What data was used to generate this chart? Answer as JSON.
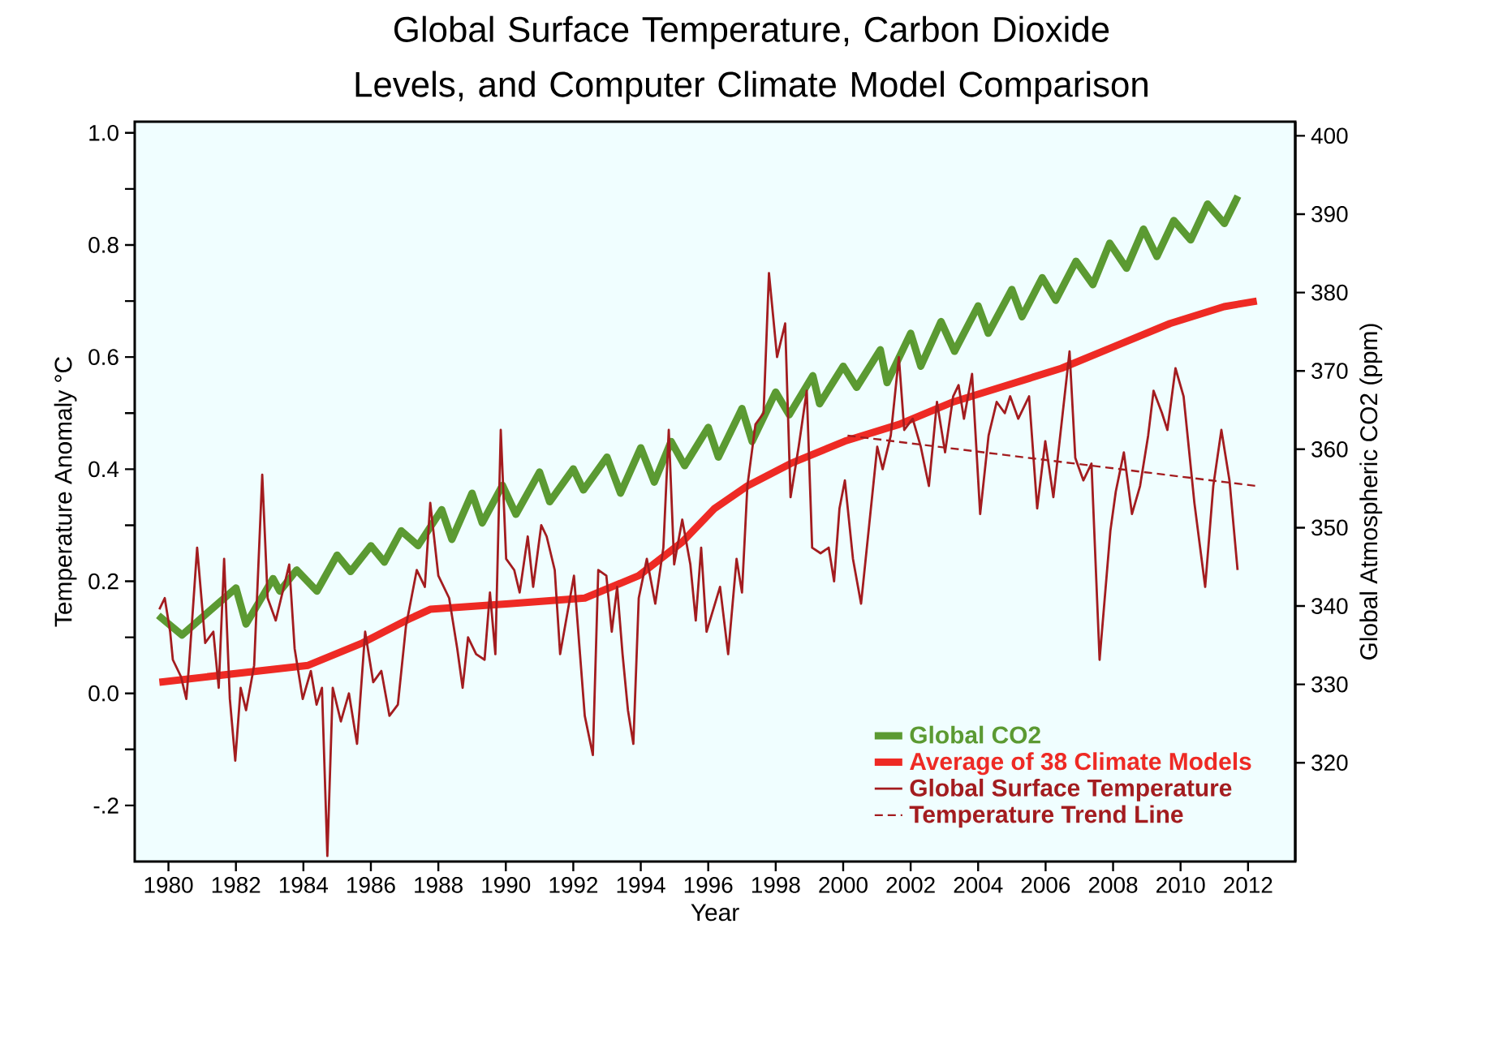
{
  "chart_data": {
    "type": "line",
    "title": "Global Surface Temperature, Carbon Dioxide Levels, and Computer Climate Model Comparison",
    "xlabel": "Year",
    "ylabel": "Temperature Anomaly °C",
    "y2label": "Global Atmospheric CO2 (ppm)",
    "xlim": [
      1979.0,
      2013.4
    ],
    "ylim": [
      -0.3,
      1.02
    ],
    "y2lim": [
      307.4,
      401.8
    ],
    "xticks": [
      1980,
      1982,
      1984,
      1986,
      1988,
      1990,
      1992,
      1994,
      1996,
      1998,
      2000,
      2002,
      2004,
      2006,
      2008,
      2010,
      2012
    ],
    "yticks": [
      {
        "value": -0.2,
        "label": "-.2"
      },
      {
        "value": -0.1,
        "label": null
      },
      {
        "value": 0,
        "label": "0.0"
      },
      {
        "value": 0.1,
        "label": null
      },
      {
        "value": 0.2,
        "label": "0.2"
      },
      {
        "value": 0.3,
        "label": null
      },
      {
        "value": 0.4,
        "label": "0.4"
      },
      {
        "value": 0.5,
        "label": null
      },
      {
        "value": 0.6,
        "label": "0.6"
      },
      {
        "value": 0.7,
        "label": null
      },
      {
        "value": 0.8,
        "label": "0.8"
      },
      {
        "value": 0.9,
        "label": null
      },
      {
        "value": 1.0,
        "label": "1.0"
      }
    ],
    "y2ticks": [
      320,
      330,
      340,
      350,
      360,
      370,
      380,
      390,
      400
    ],
    "legend": "bottom right",
    "marker": "none",
    "series": [
      {
        "name": "Global CO2",
        "color": "#5b9a32",
        "axis": "y2",
        "line_style": "solid",
        "x": [
          1979.7,
          1980.4,
          1982.0,
          1982.3,
          1983.1,
          1983.3,
          1983.8,
          1984.4,
          1985.0,
          1985.4,
          1986.0,
          1986.4,
          1986.9,
          1987.4,
          1988.1,
          1988.4,
          1989.0,
          1989.3,
          1989.9,
          1990.3,
          1991.0,
          1991.3,
          1992.0,
          1992.3,
          1993.0,
          1993.4,
          1994.0,
          1994.4,
          1994.9,
          1995.3,
          1996.0,
          1996.3,
          1997.0,
          1997.3,
          1998.0,
          1998.4,
          1999.1,
          1999.3,
          2000.0,
          2000.4,
          2001.1,
          2001.3,
          2002.0,
          2002.3,
          2002.9,
          2003.3,
          2004.0,
          2004.3,
          2005.0,
          2005.3,
          2005.9,
          2006.3,
          2006.9,
          2007.4,
          2007.9,
          2008.4,
          2008.9,
          2009.3,
          2009.8,
          2010.3,
          2010.8,
          2011.3,
          2011.7
        ],
        "values": [
          338.8,
          336.3,
          342.3,
          337.7,
          343.5,
          341.9,
          344.6,
          341.9,
          346.5,
          344.4,
          347.7,
          345.6,
          349.6,
          347.7,
          352.3,
          348.5,
          354.4,
          350.6,
          355.4,
          351.7,
          357.1,
          353.3,
          357.5,
          354.8,
          359.0,
          354.4,
          360.2,
          355.8,
          361.0,
          357.9,
          362.8,
          359.0,
          365.2,
          361.0,
          367.3,
          364.4,
          369.4,
          365.8,
          370.6,
          367.9,
          372.7,
          368.5,
          374.8,
          370.6,
          376.3,
          372.5,
          378.3,
          374.8,
          380.4,
          376.9,
          381.9,
          379.0,
          384.0,
          381.0,
          386.3,
          383.1,
          388.1,
          384.6,
          389.2,
          386.7,
          391.3,
          388.8,
          392.3
        ]
      },
      {
        "name": "Average of 38 Climate Models",
        "color": "#ee2a24",
        "line_style": "solid",
        "x": [
          1979.73,
          1984.14,
          1985.75,
          1987.04,
          1987.76,
          1990.09,
          1992.34,
          1993.94,
          1995.23,
          1996.19,
          1997.16,
          1998.44,
          2000.05,
          2001.66,
          2003.26,
          2004.87,
          2006.47,
          2008.08,
          2009.69,
          2011.29,
          2012.26
        ],
        "values": [
          0.02,
          0.05,
          0.09,
          0.13,
          0.15,
          0.16,
          0.17,
          0.21,
          0.27,
          0.33,
          0.37,
          0.41,
          0.45,
          0.48,
          0.52,
          0.55,
          0.58,
          0.62,
          0.66,
          0.69,
          0.7
        ]
      },
      {
        "name": "Global Surface Temperature",
        "color": "#a31c1f",
        "line_style": "solid",
        "x": [
          1979.73,
          1979.89,
          1980.05,
          1980.13,
          1980.37,
          1980.53,
          1980.61,
          1980.85,
          1981.09,
          1981.33,
          1981.49,
          1981.65,
          1981.82,
          1981.98,
          1982.14,
          1982.3,
          1982.54,
          1982.78,
          1982.94,
          1983.18,
          1983.42,
          1983.58,
          1983.74,
          1983.98,
          1984.22,
          1984.39,
          1984.55,
          1984.71,
          1984.87,
          1985.11,
          1985.35,
          1985.59,
          1985.83,
          1986.07,
          1986.31,
          1986.55,
          1986.8,
          1987.04,
          1987.36,
          1987.6,
          1987.76,
          1988.0,
          1988.32,
          1988.56,
          1988.72,
          1988.88,
          1989.12,
          1989.37,
          1989.53,
          1989.69,
          1989.85,
          1990.01,
          1990.25,
          1990.41,
          1990.65,
          1990.81,
          1991.05,
          1991.21,
          1991.45,
          1991.61,
          1992.02,
          1992.34,
          1992.58,
          1992.74,
          1992.98,
          1993.14,
          1993.3,
          1993.46,
          1993.62,
          1993.78,
          1993.94,
          1994.18,
          1994.43,
          1994.67,
          1994.83,
          1994.99,
          1995.23,
          1995.47,
          1995.63,
          1995.79,
          1995.95,
          1996.35,
          1996.59,
          1996.84,
          1997.0,
          1997.16,
          1997.4,
          1997.64,
          1997.8,
          1998.04,
          1998.28,
          1998.44,
          1998.68,
          1998.92,
          1999.08,
          1999.33,
          1999.57,
          1999.73,
          1999.89,
          2000.05,
          2000.29,
          2000.53,
          2000.77,
          2001.01,
          2001.17,
          2001.41,
          2001.65,
          2001.81,
          2002.06,
          2002.3,
          2002.54,
          2002.78,
          2003.02,
          2003.26,
          2003.42,
          2003.58,
          2003.82,
          2004.06,
          2004.31,
          2004.55,
          2004.79,
          2004.95,
          2005.19,
          2005.51,
          2005.75,
          2005.99,
          2006.23,
          2006.47,
          2006.71,
          2006.88,
          2007.12,
          2007.36,
          2007.6,
          2007.92,
          2008.08,
          2008.32,
          2008.56,
          2008.8,
          2009.04,
          2009.2,
          2009.45,
          2009.61,
          2009.85,
          2010.09,
          2010.41,
          2010.73,
          2010.97,
          2011.21,
          2011.45,
          2011.69
        ],
        "values": [
          0.15,
          0.17,
          0.11,
          0.06,
          0.03,
          -0.01,
          0.05,
          0.26,
          0.09,
          0.11,
          0.01,
          0.24,
          -0.01,
          -0.12,
          0.01,
          -0.03,
          0.05,
          0.39,
          0.17,
          0.13,
          0.19,
          0.23,
          0.08,
          -0.01,
          0.04,
          -0.02,
          0.01,
          -0.29,
          0.01,
          -0.05,
          0.0,
          -0.09,
          0.11,
          0.02,
          0.04,
          -0.04,
          -0.02,
          0.12,
          0.22,
          0.19,
          0.34,
          0.21,
          0.17,
          0.08,
          0.01,
          0.1,
          0.07,
          0.06,
          0.18,
          0.07,
          0.47,
          0.24,
          0.22,
          0.18,
          0.28,
          0.19,
          0.3,
          0.28,
          0.22,
          0.07,
          0.21,
          -0.04,
          -0.11,
          0.22,
          0.21,
          0.11,
          0.19,
          0.07,
          -0.03,
          -0.09,
          0.17,
          0.24,
          0.16,
          0.26,
          0.47,
          0.23,
          0.31,
          0.23,
          0.13,
          0.26,
          0.11,
          0.19,
          0.07,
          0.24,
          0.18,
          0.37,
          0.48,
          0.5,
          0.75,
          0.6,
          0.66,
          0.35,
          0.44,
          0.54,
          0.26,
          0.25,
          0.26,
          0.2,
          0.33,
          0.38,
          0.24,
          0.16,
          0.3,
          0.44,
          0.4,
          0.46,
          0.6,
          0.47,
          0.49,
          0.44,
          0.37,
          0.52,
          0.43,
          0.53,
          0.55,
          0.49,
          0.57,
          0.32,
          0.46,
          0.52,
          0.5,
          0.53,
          0.49,
          0.53,
          0.33,
          0.45,
          0.35,
          0.48,
          0.61,
          0.42,
          0.38,
          0.41,
          0.06,
          0.29,
          0.36,
          0.43,
          0.32,
          0.37,
          0.46,
          0.54,
          0.5,
          0.47,
          0.58,
          0.53,
          0.34,
          0.19,
          0.37,
          0.47,
          0.38,
          0.22
        ]
      },
      {
        "name": "Temperature Trend Line",
        "color": "#a31c1f",
        "line_style": "dashed",
        "x": [
          2000.13,
          2012.26
        ],
        "values": [
          0.46,
          0.37
        ]
      }
    ]
  }
}
